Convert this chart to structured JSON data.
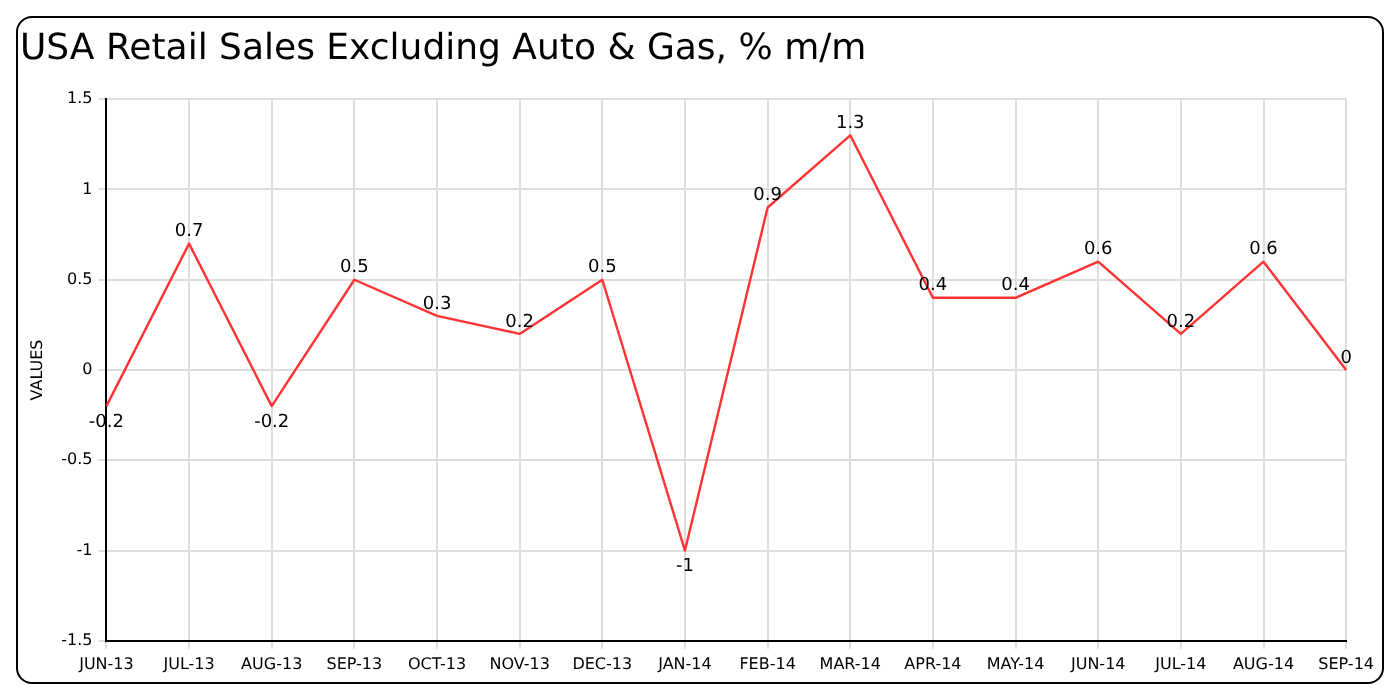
{
  "chart_data": {
    "type": "line",
    "title": "USA Retail Sales Excluding Auto & Gas, % m/m",
    "ylabel": "VALUES",
    "categories": [
      "JUN-13",
      "JUL-13",
      "AUG-13",
      "SEP-13",
      "OCT-13",
      "NOV-13",
      "DEC-13",
      "JAN-14",
      "FEB-14",
      "MAR-14",
      "APR-14",
      "MAY-14",
      "JUN-14",
      "JUL-14",
      "AUG-14",
      "SEP-14"
    ],
    "series": [
      {
        "color": "#ff3333",
        "values": [
          -0.2,
          0.7,
          -0.2,
          0.5,
          0.3,
          0.2,
          0.5,
          -1,
          0.9,
          1.3,
          0.4,
          0.4,
          0.6,
          0.2,
          0.6,
          0
        ]
      }
    ],
    "ylim": [
      -1.5,
      1.5
    ],
    "yticks": [
      -1.5,
      -1,
      -0.5,
      0,
      0.5,
      1,
      1.5
    ],
    "grid": true,
    "data_labels": true,
    "marker": "none",
    "line_style": "solid",
    "legend": false
  }
}
